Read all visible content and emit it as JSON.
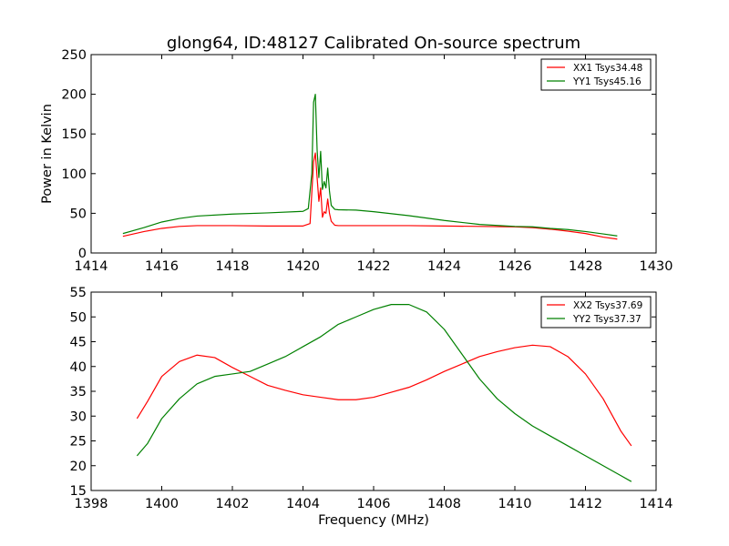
{
  "figure": {
    "title": "glong64, ID:48127 Calibrated On-source spectrum",
    "xlabel": "Frequency (MHz)",
    "ylabel": "Power in Kelvin"
  },
  "chart_data": [
    {
      "type": "line",
      "title": "glong64, ID:48127 Calibrated On-source spectrum",
      "xlabel": "",
      "ylabel": "Power in Kelvin",
      "xlim": [
        1414,
        1430
      ],
      "ylim": [
        0,
        250
      ],
      "xticks": [
        1414,
        1416,
        1418,
        1420,
        1422,
        1424,
        1426,
        1428,
        1430
      ],
      "yticks": [
        0,
        50,
        100,
        150,
        200,
        250
      ],
      "legend": "top-right",
      "series": [
        {
          "name": "XX1 Tsys34.48",
          "color": "#ff0000",
          "x": [
            1414.9,
            1415.5,
            1416.0,
            1416.5,
            1417.0,
            1418.0,
            1419.0,
            1420.0,
            1420.2,
            1420.3,
            1420.35,
            1420.4,
            1420.45,
            1420.5,
            1420.55,
            1420.6,
            1420.65,
            1420.7,
            1420.75,
            1420.8,
            1420.9,
            1421.0,
            1421.5,
            1422.0,
            1423.0,
            1424.0,
            1425.0,
            1426.0,
            1426.5,
            1427.0,
            1427.5,
            1428.0,
            1428.5,
            1428.9
          ],
          "y": [
            21,
            27,
            31,
            33.5,
            34.5,
            34.5,
            34,
            34,
            37,
            115,
            126,
            95,
            65,
            82,
            45,
            52,
            50,
            68,
            50,
            40,
            35,
            34.5,
            34.5,
            34.5,
            34.5,
            34,
            33.5,
            33,
            32,
            30,
            27.5,
            24.5,
            20,
            17.5
          ]
        },
        {
          "name": "YY1 Tsys45.16",
          "color": "#008000",
          "x": [
            1414.9,
            1415.5,
            1416.0,
            1416.5,
            1417.0,
            1418.0,
            1419.0,
            1420.0,
            1420.15,
            1420.25,
            1420.3,
            1420.35,
            1420.4,
            1420.45,
            1420.5,
            1420.55,
            1420.6,
            1420.65,
            1420.7,
            1420.75,
            1420.8,
            1420.9,
            1421.0,
            1421.5,
            1422.0,
            1423.0,
            1424.0,
            1425.0,
            1426.0,
            1426.5,
            1427.0,
            1427.5,
            1428.0,
            1428.5,
            1428.9
          ],
          "y": [
            24.5,
            32,
            39,
            43.5,
            46.5,
            49,
            50.5,
            52.5,
            56,
            100,
            190,
            200,
            130,
            95,
            128,
            80,
            90,
            82,
            107,
            78,
            60,
            55,
            54.5,
            54,
            52,
            47,
            41,
            36,
            33.5,
            33,
            31,
            29.5,
            27,
            24,
            21.5
          ]
        }
      ]
    },
    {
      "type": "line",
      "title": "",
      "xlabel": "Frequency (MHz)",
      "ylabel": "",
      "xlim": [
        1398,
        1414
      ],
      "ylim": [
        15,
        55
      ],
      "xticks": [
        1398,
        1400,
        1402,
        1404,
        1406,
        1408,
        1410,
        1412,
        1414
      ],
      "yticks": [
        15,
        20,
        25,
        30,
        35,
        40,
        45,
        50,
        55
      ],
      "legend": "top-right",
      "series": [
        {
          "name": "XX2 Tsys37.69",
          "color": "#ff0000",
          "x": [
            1399.3,
            1399.6,
            1400.0,
            1400.5,
            1401.0,
            1401.5,
            1402.0,
            1402.5,
            1403.0,
            1403.5,
            1404.0,
            1404.5,
            1405.0,
            1405.5,
            1406.0,
            1406.5,
            1407.0,
            1407.5,
            1408.0,
            1408.5,
            1409.0,
            1409.5,
            1410.0,
            1410.5,
            1411.0,
            1411.5,
            1412.0,
            1412.5,
            1413.0,
            1413.3
          ],
          "y": [
            29.5,
            33,
            38,
            41,
            42.3,
            41.8,
            39.8,
            38,
            36.2,
            35.2,
            34.3,
            33.8,
            33.3,
            33.3,
            33.8,
            34.8,
            35.8,
            37.3,
            39,
            40.5,
            42,
            43,
            43.8,
            44.3,
            44,
            42,
            38.5,
            33.5,
            27,
            24
          ]
        },
        {
          "name": "YY2 Tsys37.37",
          "color": "#008000",
          "x": [
            1399.3,
            1399.6,
            1400.0,
            1400.5,
            1401.0,
            1401.5,
            1402.0,
            1402.5,
            1403.0,
            1403.5,
            1404.0,
            1404.5,
            1405.0,
            1405.5,
            1406.0,
            1406.5,
            1407.0,
            1407.5,
            1408.0,
            1408.5,
            1409.0,
            1409.5,
            1410.0,
            1410.5,
            1411.0,
            1411.5,
            1412.0,
            1412.5,
            1413.0,
            1413.3
          ],
          "y": [
            22,
            24.5,
            29.5,
            33.5,
            36.5,
            38,
            38.5,
            39,
            40.5,
            42,
            44,
            46,
            48.5,
            50,
            51.5,
            52.5,
            52.5,
            51,
            47.5,
            42.5,
            37.5,
            33.5,
            30.5,
            28,
            26,
            24,
            22,
            20,
            18,
            16.8
          ]
        }
      ]
    }
  ]
}
